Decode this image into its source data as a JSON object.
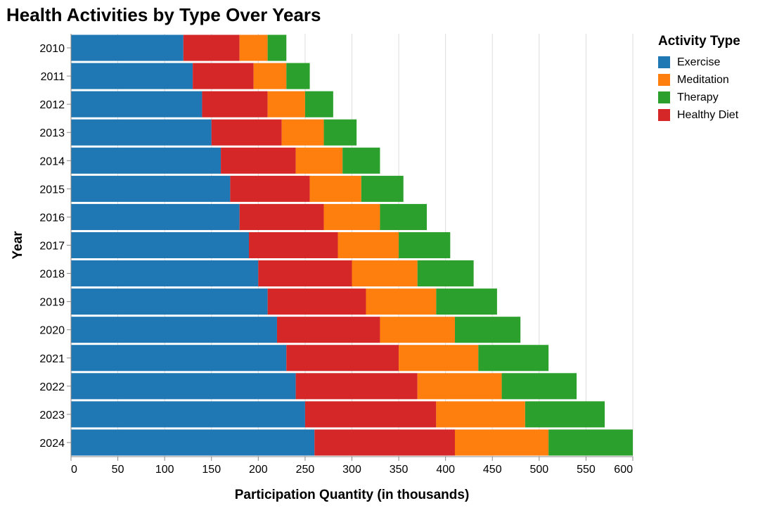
{
  "chart_data": {
    "type": "bar",
    "orientation": "horizontal",
    "stacked": true,
    "title": "Health Activities by Type Over Years",
    "xlabel": "Participation Quantity (in thousands)",
    "ylabel": "Year",
    "xlim": [
      0,
      600
    ],
    "x_ticks": [
      0,
      50,
      100,
      150,
      200,
      250,
      300,
      350,
      400,
      450,
      500,
      550,
      600
    ],
    "grid": true,
    "legend": {
      "title": "Activity Type",
      "position": "right"
    },
    "categories": [
      "2010",
      "2011",
      "2012",
      "2013",
      "2014",
      "2015",
      "2016",
      "2017",
      "2018",
      "2019",
      "2020",
      "2021",
      "2022",
      "2023",
      "2024"
    ],
    "stack_order": [
      "Exercise",
      "Healthy Diet",
      "Meditation",
      "Therapy"
    ],
    "series": [
      {
        "name": "Exercise",
        "color": "#1f77b4",
        "values": [
          120,
          130,
          140,
          150,
          160,
          170,
          180,
          190,
          200,
          210,
          220,
          230,
          240,
          250,
          260
        ]
      },
      {
        "name": "Meditation",
        "color": "#ff7f0e",
        "values": [
          30,
          35,
          40,
          45,
          50,
          55,
          60,
          65,
          70,
          75,
          80,
          85,
          90,
          95,
          100
        ]
      },
      {
        "name": "Therapy",
        "color": "#2ca02c",
        "values": [
          20,
          25,
          30,
          35,
          40,
          45,
          50,
          55,
          60,
          65,
          70,
          75,
          80,
          85,
          90
        ]
      },
      {
        "name": "Healthy Diet",
        "color": "#d62728",
        "values": [
          60,
          65,
          70,
          75,
          80,
          85,
          90,
          95,
          100,
          105,
          110,
          120,
          130,
          140,
          150
        ]
      }
    ]
  }
}
